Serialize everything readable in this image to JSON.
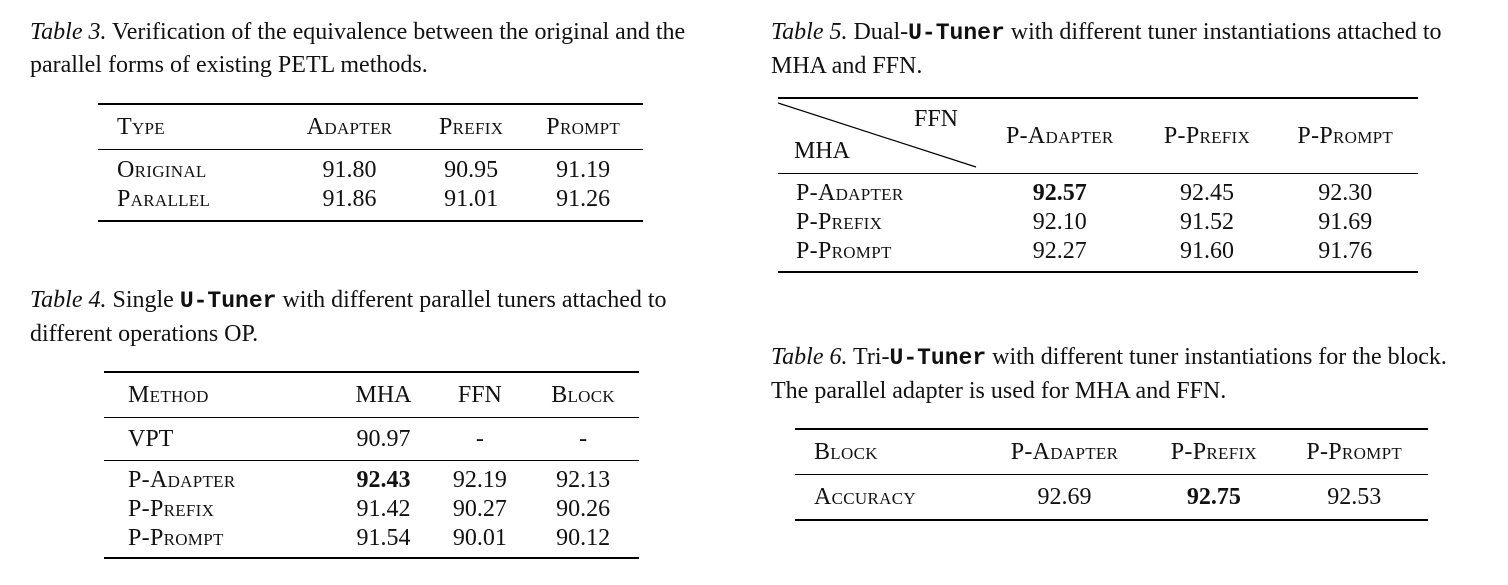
{
  "table3": {
    "label": "Table 3.",
    "caption": "Verification of the equivalence between the original and the parallel forms of existing PETL methods.",
    "headers": [
      "Type",
      "Adapter",
      "Prefix",
      "Prompt"
    ],
    "rows": [
      [
        "Original",
        "91.80",
        "90.95",
        "91.19"
      ],
      [
        "Parallel",
        "91.86",
        "91.01",
        "91.26"
      ]
    ]
  },
  "table4": {
    "label": "Table 4.",
    "caption_pre": "Single",
    "code": "U-Tuner",
    "caption_post": "with different parallel tuners attached to different operations OP.",
    "headers": [
      "Method",
      "MHA",
      "FFN",
      "Block"
    ],
    "rows": [
      [
        "VPT",
        "90.97",
        "-",
        "-"
      ],
      [
        "P-Adapter",
        "92.43",
        "92.19",
        "92.13"
      ],
      [
        "P-Prefix",
        "91.42",
        "90.27",
        "90.26"
      ],
      [
        "P-Prompt",
        "91.54",
        "90.01",
        "90.12"
      ]
    ]
  },
  "table5": {
    "label": "Table 5.",
    "caption_pre": "Dual-",
    "code": "U-Tuner",
    "caption_post": "with different tuner instantiations attached to MHA and FFN.",
    "corner_top": "FFN",
    "corner_bottom": "MHA",
    "headers": [
      "P-Adapter",
      "P-Prefix",
      "P-Prompt"
    ],
    "rows": [
      [
        "P-Adapter",
        "92.57",
        "92.45",
        "92.30"
      ],
      [
        "P-Prefix",
        "92.10",
        "91.52",
        "91.69"
      ],
      [
        "P-Prompt",
        "92.27",
        "91.60",
        "91.76"
      ]
    ]
  },
  "table6": {
    "label": "Table 6.",
    "caption_pre": "Tri-",
    "code": "U-Tuner",
    "caption_post": "with different tuner instantiations for the block. The parallel adapter is used for MHA and FFN.",
    "headers": [
      "Block",
      "P-Adapter",
      "P-Prefix",
      "P-Prompt"
    ],
    "rows": [
      [
        "Accuracy",
        "92.69",
        "92.75",
        "92.53"
      ]
    ]
  }
}
